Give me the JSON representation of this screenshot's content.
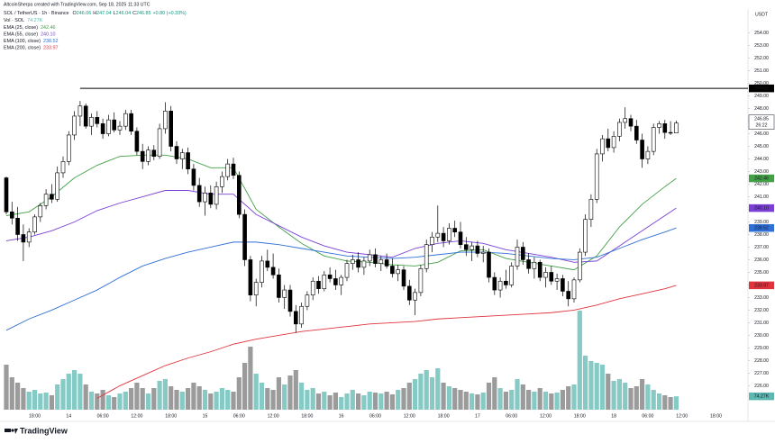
{
  "chart_data": {
    "type": "candlestick",
    "attribution": "AltcoinSherpa created with TradingView.com, Sep 18, 2025 11:33 UTC",
    "title": "SOL / TetherUS · 1h · Binance",
    "ohlc_labels": [
      "O",
      "H",
      "L",
      "C"
    ],
    "change": "+0.80 (+0.33%)",
    "currency": "USDT",
    "brand": "TradingView",
    "up_color": "#ffffff",
    "down_color": "#000000",
    "ylim": [
      224.1,
      255.9
    ],
    "yticks": [
      {
        "value": 226,
        "label": "226.00"
      },
      {
        "value": 227,
        "label": "227.00"
      },
      {
        "value": 228,
        "label": "228.00"
      },
      {
        "value": 229,
        "label": "229.00"
      },
      {
        "value": 230,
        "label": "230.00"
      },
      {
        "value": 231,
        "label": "231.00"
      },
      {
        "value": 232,
        "label": "232.00"
      },
      {
        "value": 233,
        "label": "233.00"
      },
      {
        "value": 234,
        "label": "234.00"
      },
      {
        "value": 235,
        "label": "235.00"
      },
      {
        "value": 236,
        "label": "236.00"
      },
      {
        "value": 237,
        "label": "237.00"
      },
      {
        "value": 238,
        "label": "238.00"
      },
      {
        "value": 239,
        "label": "239.00"
      },
      {
        "value": 240,
        "label": "240.00"
      },
      {
        "value": 241,
        "label": "241.00"
      },
      {
        "value": 242,
        "label": "242.00"
      },
      {
        "value": 243,
        "label": "243.00"
      },
      {
        "value": 244,
        "label": "244.00"
      },
      {
        "value": 245,
        "label": "245.00"
      },
      {
        "value": 246,
        "label": "246.00"
      },
      {
        "value": 247,
        "label": "247.00"
      },
      {
        "value": 248,
        "label": "248.00"
      },
      {
        "value": 249,
        "label": "249.00"
      },
      {
        "value": 250,
        "label": "250.00"
      },
      {
        "value": 251,
        "label": "251.00"
      },
      {
        "value": 252,
        "label": "252.00"
      },
      {
        "value": 253,
        "label": "253.00"
      },
      {
        "value": 254,
        "label": "254.00"
      }
    ],
    "x_tick_labels": [
      "18:00",
      "14",
      "06:00",
      "12:00",
      "18:00",
      "15",
      "06:00",
      "12:00",
      "18:00",
      "16",
      "06:00",
      "12:00",
      "18:00",
      "17",
      "06:00",
      "12:00",
      "18:00",
      "18",
      "06:00",
      "12:00",
      "18:00"
    ],
    "level": {
      "value": 249.6,
      "label": "249.60"
    },
    "countdown": "26:22",
    "candles": [
      [
        242.5,
        242.6,
        239.6,
        239.8
      ],
      [
        239.8,
        240.6,
        238.8,
        239.3
      ],
      [
        239.3,
        240.2,
        237.5,
        238.0
      ],
      [
        238.0,
        238.8,
        235.9,
        237.4
      ],
      [
        237.4,
        238.5,
        237.0,
        238.2
      ],
      [
        238.2,
        239.6,
        238.0,
        239.4
      ],
      [
        239.4,
        240.5,
        239.0,
        240.3
      ],
      [
        240.3,
        241.6,
        240.0,
        241.2
      ],
      [
        241.2,
        242.0,
        240.5,
        240.8
      ],
      [
        240.8,
        243.4,
        240.6,
        242.9
      ],
      [
        242.9,
        244.2,
        242.5,
        243.8
      ],
      [
        243.8,
        246.2,
        243.5,
        245.9
      ],
      [
        245.9,
        247.8,
        245.5,
        247.4
      ],
      [
        247.4,
        248.6,
        246.6,
        248.2
      ],
      [
        248.2,
        248.4,
        246.4,
        246.6
      ],
      [
        246.6,
        247.6,
        245.9,
        247.3
      ],
      [
        247.3,
        247.8,
        246.5,
        246.8
      ],
      [
        246.8,
        247.2,
        245.6,
        246.0
      ],
      [
        246.0,
        247.5,
        245.8,
        247.1
      ],
      [
        247.1,
        247.7,
        246.1,
        246.3
      ],
      [
        246.3,
        247.0,
        245.9,
        246.6
      ],
      [
        246.6,
        247.9,
        246.3,
        247.6
      ],
      [
        247.6,
        247.9,
        245.9,
        246.2
      ],
      [
        246.2,
        246.5,
        244.3,
        244.6
      ],
      [
        244.6,
        245.2,
        243.2,
        243.8
      ],
      [
        243.8,
        245.0,
        243.5,
        244.7
      ],
      [
        244.7,
        245.1,
        243.9,
        244.2
      ],
      [
        244.2,
        246.8,
        244.0,
        246.4
      ],
      [
        246.4,
        248.5,
        246.0,
        247.8
      ],
      [
        247.8,
        248.2,
        244.6,
        245.0
      ],
      [
        245.0,
        245.4,
        243.6,
        244.0
      ],
      [
        244.0,
        244.8,
        243.2,
        244.5
      ],
      [
        244.5,
        244.9,
        242.8,
        243.2
      ],
      [
        243.2,
        243.6,
        241.5,
        241.9
      ],
      [
        241.9,
        242.5,
        240.2,
        240.6
      ],
      [
        240.6,
        241.8,
        239.5,
        241.3
      ],
      [
        241.3,
        241.9,
        240.1,
        240.4
      ],
      [
        240.4,
        242.2,
        240.0,
        241.8
      ],
      [
        241.8,
        243.0,
        241.3,
        242.6
      ],
      [
        242.6,
        244.0,
        242.3,
        243.6
      ],
      [
        243.6,
        244.1,
        242.4,
        242.7
      ],
      [
        242.7,
        243.0,
        239.3,
        239.6
      ],
      [
        239.6,
        240.0,
        235.5,
        236.0
      ],
      [
        236.0,
        236.3,
        232.7,
        233.2
      ],
      [
        233.2,
        234.5,
        232.3,
        234.2
      ],
      [
        234.2,
        236.3,
        233.8,
        235.9
      ],
      [
        235.9,
        236.8,
        235.1,
        235.4
      ],
      [
        235.4,
        236.5,
        234.5,
        234.8
      ],
      [
        234.8,
        235.3,
        232.6,
        233.0
      ],
      [
        233.0,
        234.0,
        232.1,
        233.6
      ],
      [
        233.6,
        234.0,
        231.5,
        231.9
      ],
      [
        231.9,
        232.4,
        230.2,
        230.9
      ],
      [
        230.9,
        232.6,
        230.6,
        232.3
      ],
      [
        232.3,
        233.5,
        232.0,
        233.2
      ],
      [
        233.2,
        234.6,
        232.8,
        234.3
      ],
      [
        234.3,
        234.7,
        233.3,
        233.7
      ],
      [
        233.7,
        235.1,
        233.5,
        234.8
      ],
      [
        234.8,
        235.4,
        234.2,
        234.5
      ],
      [
        234.5,
        235.2,
        233.6,
        234.0
      ],
      [
        234.0,
        234.8,
        233.2,
        234.6
      ],
      [
        234.6,
        236.0,
        234.3,
        235.7
      ],
      [
        235.7,
        236.4,
        235.2,
        236.0
      ],
      [
        236.0,
        236.6,
        235.0,
        235.4
      ],
      [
        235.4,
        236.2,
        234.8,
        235.9
      ],
      [
        235.9,
        236.8,
        235.5,
        236.4
      ],
      [
        236.4,
        236.9,
        235.4,
        235.7
      ],
      [
        235.7,
        236.3,
        235.1,
        236.0
      ],
      [
        236.0,
        236.5,
        235.3,
        235.5
      ],
      [
        235.5,
        236.1,
        234.6,
        234.9
      ],
      [
        234.9,
        235.6,
        234.3,
        235.2
      ],
      [
        235.2,
        235.5,
        233.6,
        233.9
      ],
      [
        233.9,
        234.4,
        232.4,
        232.8
      ],
      [
        232.8,
        233.7,
        231.6,
        233.4
      ],
      [
        233.4,
        235.6,
        233.1,
        235.3
      ],
      [
        235.3,
        237.6,
        235.0,
        237.2
      ],
      [
        237.2,
        238.2,
        236.6,
        237.8
      ],
      [
        237.8,
        240.3,
        237.4,
        238.1
      ],
      [
        238.1,
        238.6,
        237.0,
        237.5
      ],
      [
        237.5,
        238.9,
        237.2,
        238.5
      ],
      [
        238.5,
        239.1,
        237.8,
        238.2
      ],
      [
        238.2,
        239.0,
        236.9,
        237.2
      ],
      [
        237.2,
        237.8,
        236.3,
        236.8
      ],
      [
        236.8,
        237.4,
        235.9,
        237.1
      ],
      [
        237.1,
        237.5,
        236.2,
        236.5
      ],
      [
        236.5,
        237.1,
        235.8,
        236.6
      ],
      [
        236.6,
        236.9,
        234.2,
        234.6
      ],
      [
        234.6,
        235.0,
        233.2,
        233.6
      ],
      [
        233.6,
        234.6,
        233.0,
        234.3
      ],
      [
        234.3,
        235.2,
        233.7,
        234.0
      ],
      [
        234.0,
        235.8,
        233.8,
        235.5
      ],
      [
        235.5,
        237.6,
        235.2,
        237.0
      ],
      [
        237.0,
        237.4,
        235.6,
        236.0
      ],
      [
        236.0,
        236.5,
        234.9,
        235.3
      ],
      [
        235.3,
        236.2,
        234.5,
        235.8
      ],
      [
        235.8,
        236.0,
        234.3,
        234.6
      ],
      [
        234.6,
        235.4,
        233.8,
        235.0
      ],
      [
        235.0,
        235.5,
        234.0,
        234.3
      ],
      [
        234.3,
        234.9,
        233.6,
        234.5
      ],
      [
        234.5,
        234.8,
        233.1,
        233.5
      ],
      [
        233.5,
        234.3,
        232.3,
        232.9
      ],
      [
        232.9,
        234.6,
        232.6,
        234.4
      ],
      [
        234.4,
        236.9,
        234.2,
        236.6
      ],
      [
        236.6,
        239.6,
        236.3,
        239.2
      ],
      [
        239.2,
        241.2,
        238.6,
        240.8
      ],
      [
        240.8,
        244.8,
        240.5,
        244.4
      ],
      [
        244.4,
        245.9,
        243.8,
        245.6
      ],
      [
        245.6,
        246.4,
        244.6,
        244.9
      ],
      [
        244.9,
        246.2,
        244.5,
        245.8
      ],
      [
        245.8,
        247.2,
        245.4,
        246.9
      ],
      [
        246.9,
        248.1,
        246.4,
        247.2
      ],
      [
        247.2,
        247.5,
        246.2,
        246.6
      ],
      [
        246.6,
        247.1,
        245.2,
        245.5
      ],
      [
        245.5,
        246.0,
        243.3,
        244.0
      ],
      [
        244.0,
        245.0,
        243.6,
        244.6
      ],
      [
        244.6,
        246.8,
        244.3,
        246.5
      ],
      [
        246.5,
        247.0,
        246.0,
        246.8
      ],
      [
        246.8,
        247.1,
        245.6,
        246.1
      ],
      [
        246.1,
        247.0,
        245.9,
        246.06
      ],
      [
        246.06,
        247.04,
        246.04,
        246.85
      ]
    ],
    "volume": {
      "name": "Vol · SOL",
      "value_label": "74.27K",
      "up_color": "#5cb8b0",
      "down_color": "#7a7a7a",
      "values": [
        250,
        180,
        150,
        120,
        100,
        110,
        90,
        95,
        80,
        140,
        170,
        200,
        220,
        200,
        140,
        100,
        90,
        110,
        80,
        70,
        90,
        100,
        120,
        150,
        120,
        90,
        120,
        160,
        170,
        130,
        110,
        100,
        120,
        150,
        130,
        110,
        90,
        100,
        120,
        110,
        100,
        180,
        260,
        350,
        200,
        150,
        120,
        110,
        180,
        140,
        190,
        220,
        150,
        110,
        120,
        90,
        100,
        80,
        95,
        70,
        90,
        110,
        90,
        80,
        100,
        95,
        90,
        100,
        85,
        110,
        120,
        150,
        170,
        200,
        220,
        180,
        230,
        150,
        130,
        120,
        110,
        100,
        90,
        85,
        95,
        150,
        180,
        120,
        100,
        110,
        170,
        140,
        110,
        100,
        120,
        100,
        90,
        95,
        110,
        130,
        140,
        550,
        300,
        270,
        260,
        250,
        200,
        160,
        170,
        150,
        120,
        130,
        170,
        140,
        110,
        90,
        80,
        70,
        74.27
      ]
    },
    "emas": {
      "x": [
        0,
        4,
        8,
        12,
        16,
        20,
        24,
        28,
        32,
        36,
        40,
        44,
        48,
        52,
        56,
        60,
        64,
        68,
        72,
        76,
        80,
        84,
        88,
        92,
        96,
        100,
        104,
        108,
        112,
        116,
        118
      ],
      "series": [
        {
          "name": "EMA (25, close)",
          "color": "#43a047",
          "value_label": "242.46",
          "values": [
            239.5,
            239.8,
            241.0,
            242.5,
            243.5,
            244.2,
            244.3,
            244.3,
            244.0,
            243.3,
            243.3,
            240.0,
            238.6,
            237.3,
            236.3,
            235.9,
            235.8,
            235.6,
            235.5,
            235.8,
            236.7,
            236.8,
            236.1,
            235.8,
            235.5,
            235.2,
            236.3,
            238.6,
            240.4,
            241.8,
            242.46
          ]
        },
        {
          "name": "EMA (55, close)",
          "color": "#7b3fd6",
          "value_label": "240.10",
          "values": [
            237.5,
            237.8,
            238.3,
            239.0,
            239.9,
            240.5,
            241.0,
            241.5,
            241.5,
            241.2,
            241.2,
            239.6,
            238.7,
            237.8,
            237.1,
            236.6,
            236.4,
            236.2,
            236.9,
            237.3,
            237.5,
            237.3,
            236.8,
            236.5,
            236.2,
            235.8,
            235.9,
            237.1,
            238.3,
            239.5,
            240.1
          ]
        },
        {
          "name": "EMA (100, close)",
          "color": "#2f6fd6",
          "value_label": "238.52",
          "values": [
            230.4,
            231.3,
            232.0,
            232.8,
            233.6,
            234.6,
            235.5,
            236.1,
            236.6,
            237.0,
            237.4,
            237.4,
            237.2,
            236.9,
            236.6,
            236.3,
            236.2,
            236.1,
            236.2,
            236.4,
            236.6,
            236.6,
            236.5,
            236.3,
            236.1,
            236.0,
            236.2,
            236.9,
            237.6,
            238.2,
            238.52
          ]
        },
        {
          "name": "EMA (200, close)",
          "color": "#e0343c",
          "value_label": "233.97",
          "values": [
            null,
            null,
            null,
            null,
            225.0,
            226.0,
            226.8,
            227.6,
            228.2,
            228.7,
            229.3,
            229.7,
            230.0,
            230.3,
            230.5,
            230.7,
            230.9,
            231.0,
            231.1,
            231.3,
            231.4,
            231.5,
            231.6,
            231.7,
            231.8,
            232.0,
            232.4,
            232.9,
            233.3,
            233.7,
            233.97
          ]
        }
      ]
    }
  }
}
